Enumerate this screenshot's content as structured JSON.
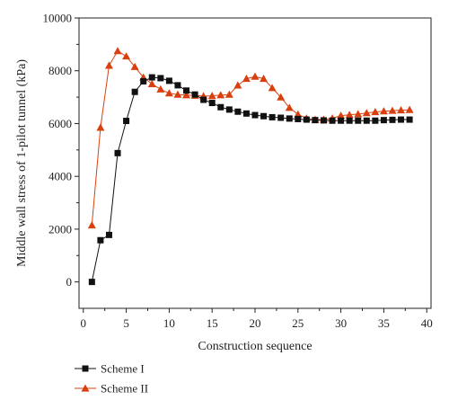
{
  "chart_data": {
    "type": "line",
    "title": "",
    "xlabel": "Construction sequence",
    "ylabel": "Middle wall stress of 1-pilot tunnel (kPa)",
    "xlim": [
      -0.5,
      40.5
    ],
    "ylim": [
      -1000,
      10000
    ],
    "xticks": [
      0,
      5,
      10,
      15,
      20,
      25,
      30,
      35,
      40
    ],
    "yticks": [
      0,
      2000,
      4000,
      6000,
      8000,
      10000
    ],
    "grid": false,
    "legend_position": "bottom-left",
    "series": [
      {
        "name": "Scheme I",
        "color": "#111111",
        "marker": "square",
        "x": [
          1,
          2,
          3,
          4,
          5,
          6,
          7,
          8,
          9,
          10,
          11,
          12,
          13,
          14,
          15,
          16,
          17,
          18,
          19,
          20,
          21,
          22,
          23,
          24,
          25,
          26,
          27,
          28,
          29,
          30,
          31,
          32,
          33,
          34,
          35,
          36,
          37,
          38
        ],
        "y": [
          0,
          1580,
          1780,
          4880,
          6100,
          7200,
          7600,
          7750,
          7720,
          7620,
          7450,
          7250,
          7100,
          6900,
          6780,
          6620,
          6530,
          6450,
          6380,
          6320,
          6280,
          6240,
          6220,
          6190,
          6170,
          6150,
          6130,
          6120,
          6110,
          6110,
          6110,
          6110,
          6110,
          6110,
          6130,
          6140,
          6150,
          6150
        ]
      },
      {
        "name": "Scheme II",
        "color": "#d9400f",
        "marker": "triangle",
        "x": [
          1,
          2,
          3,
          4,
          5,
          6,
          7,
          8,
          9,
          10,
          11,
          12,
          13,
          14,
          15,
          16,
          17,
          18,
          19,
          20,
          21,
          22,
          23,
          24,
          25,
          26,
          27,
          28,
          29,
          30,
          31,
          32,
          33,
          34,
          35,
          36,
          37,
          38
        ],
        "y": [
          2150,
          5850,
          8200,
          8750,
          8550,
          8150,
          7750,
          7500,
          7300,
          7150,
          7100,
          7080,
          7060,
          7040,
          7050,
          7080,
          7100,
          7450,
          7700,
          7780,
          7700,
          7350,
          7000,
          6600,
          6350,
          6200,
          6150,
          6150,
          6200,
          6300,
          6330,
          6360,
          6400,
          6440,
          6470,
          6490,
          6510,
          6520
        ]
      }
    ]
  }
}
